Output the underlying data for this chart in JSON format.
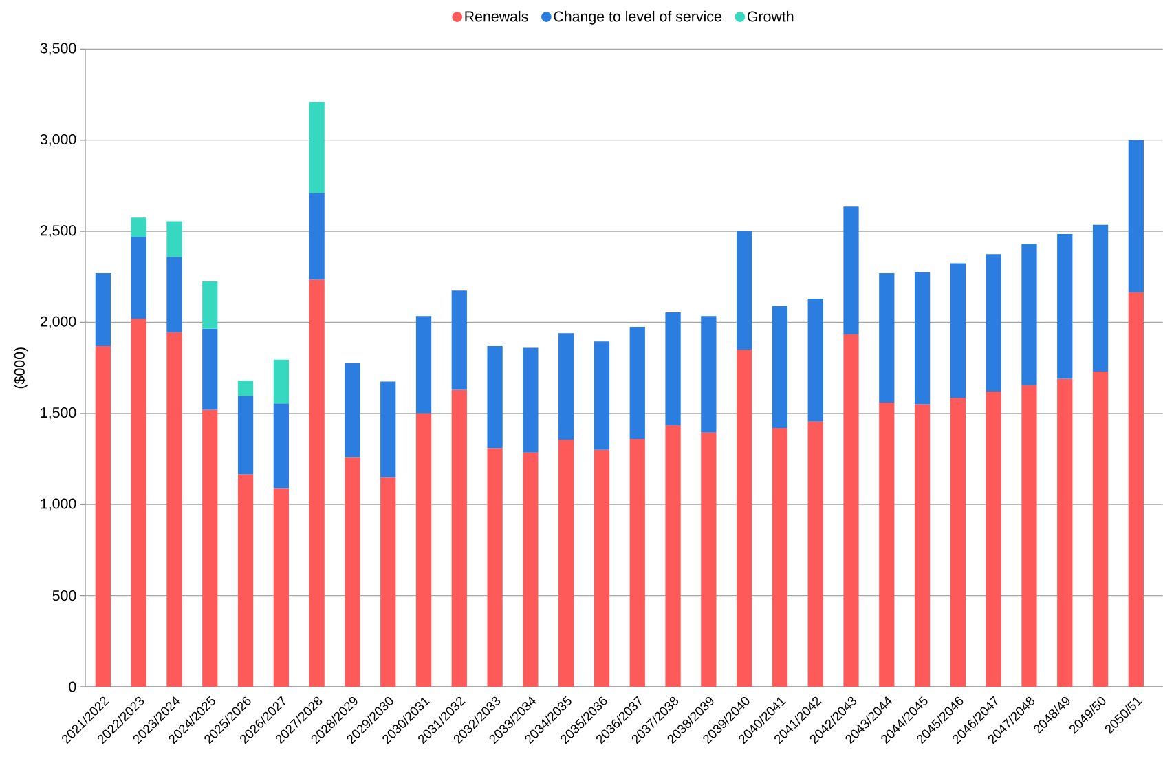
{
  "chart_data": {
    "type": "bar",
    "stacked": true,
    "ylabel": "($000)",
    "categories": [
      "2021/2022",
      "2022/2023",
      "2023/2024",
      "2024/2025",
      "2025/2026",
      "2026/2027",
      "2027/2028",
      "2028/2029",
      "2029/2030",
      "2030/2031",
      "2031/2032",
      "2032/2033",
      "2033/2034",
      "2034/2035",
      "2035/2036",
      "2036/2037",
      "2037/2038",
      "2038/2039",
      "2039/2040",
      "2040/2041",
      "2041/2042",
      "2042/2043",
      "2043/2044",
      "2044/2045",
      "2045/2046",
      "2046/2047",
      "2047/2048",
      "2048/49",
      "2049/50",
      "2050/51"
    ],
    "series": [
      {
        "name": "Renewals",
        "color": "#ff5a5a",
        "values": [
          1870,
          2020,
          1945,
          1520,
          1165,
          1090,
          2235,
          1260,
          1150,
          1500,
          1630,
          1310,
          1285,
          1355,
          1300,
          1360,
          1435,
          1395,
          1850,
          1420,
          1455,
          1935,
          1560,
          1550,
          1585,
          1620,
          1655,
          1690,
          1730,
          2165
        ]
      },
      {
        "name": "Change to level of service",
        "color": "#2b7de0",
        "values": [
          400,
          450,
          415,
          445,
          430,
          465,
          475,
          515,
          525,
          535,
          545,
          560,
          575,
          585,
          595,
          615,
          620,
          640,
          650,
          670,
          675,
          700,
          710,
          725,
          740,
          755,
          775,
          795,
          805,
          835
        ]
      },
      {
        "name": "Growth",
        "color": "#36d8c0",
        "values": [
          null,
          105,
          195,
          260,
          85,
          240,
          500,
          null,
          null,
          null,
          null,
          null,
          null,
          null,
          null,
          null,
          null,
          null,
          null,
          null,
          null,
          null,
          null,
          null,
          null,
          null,
          null,
          null,
          null,
          null
        ]
      }
    ],
    "ylim": [
      0,
      3500
    ],
    "yticks": [
      0,
      500,
      {
        "value": 1000,
        "label": "1,000"
      },
      {
        "value": 1500,
        "label": "1,500"
      },
      {
        "value": 2000,
        "label": "2,000"
      },
      {
        "value": 2500,
        "label": "2,500"
      },
      {
        "value": 3000,
        "label": "3,000"
      },
      {
        "value": 3500,
        "label": "3,500"
      }
    ],
    "grid": "y",
    "legend": "top",
    "marker": "circle"
  }
}
